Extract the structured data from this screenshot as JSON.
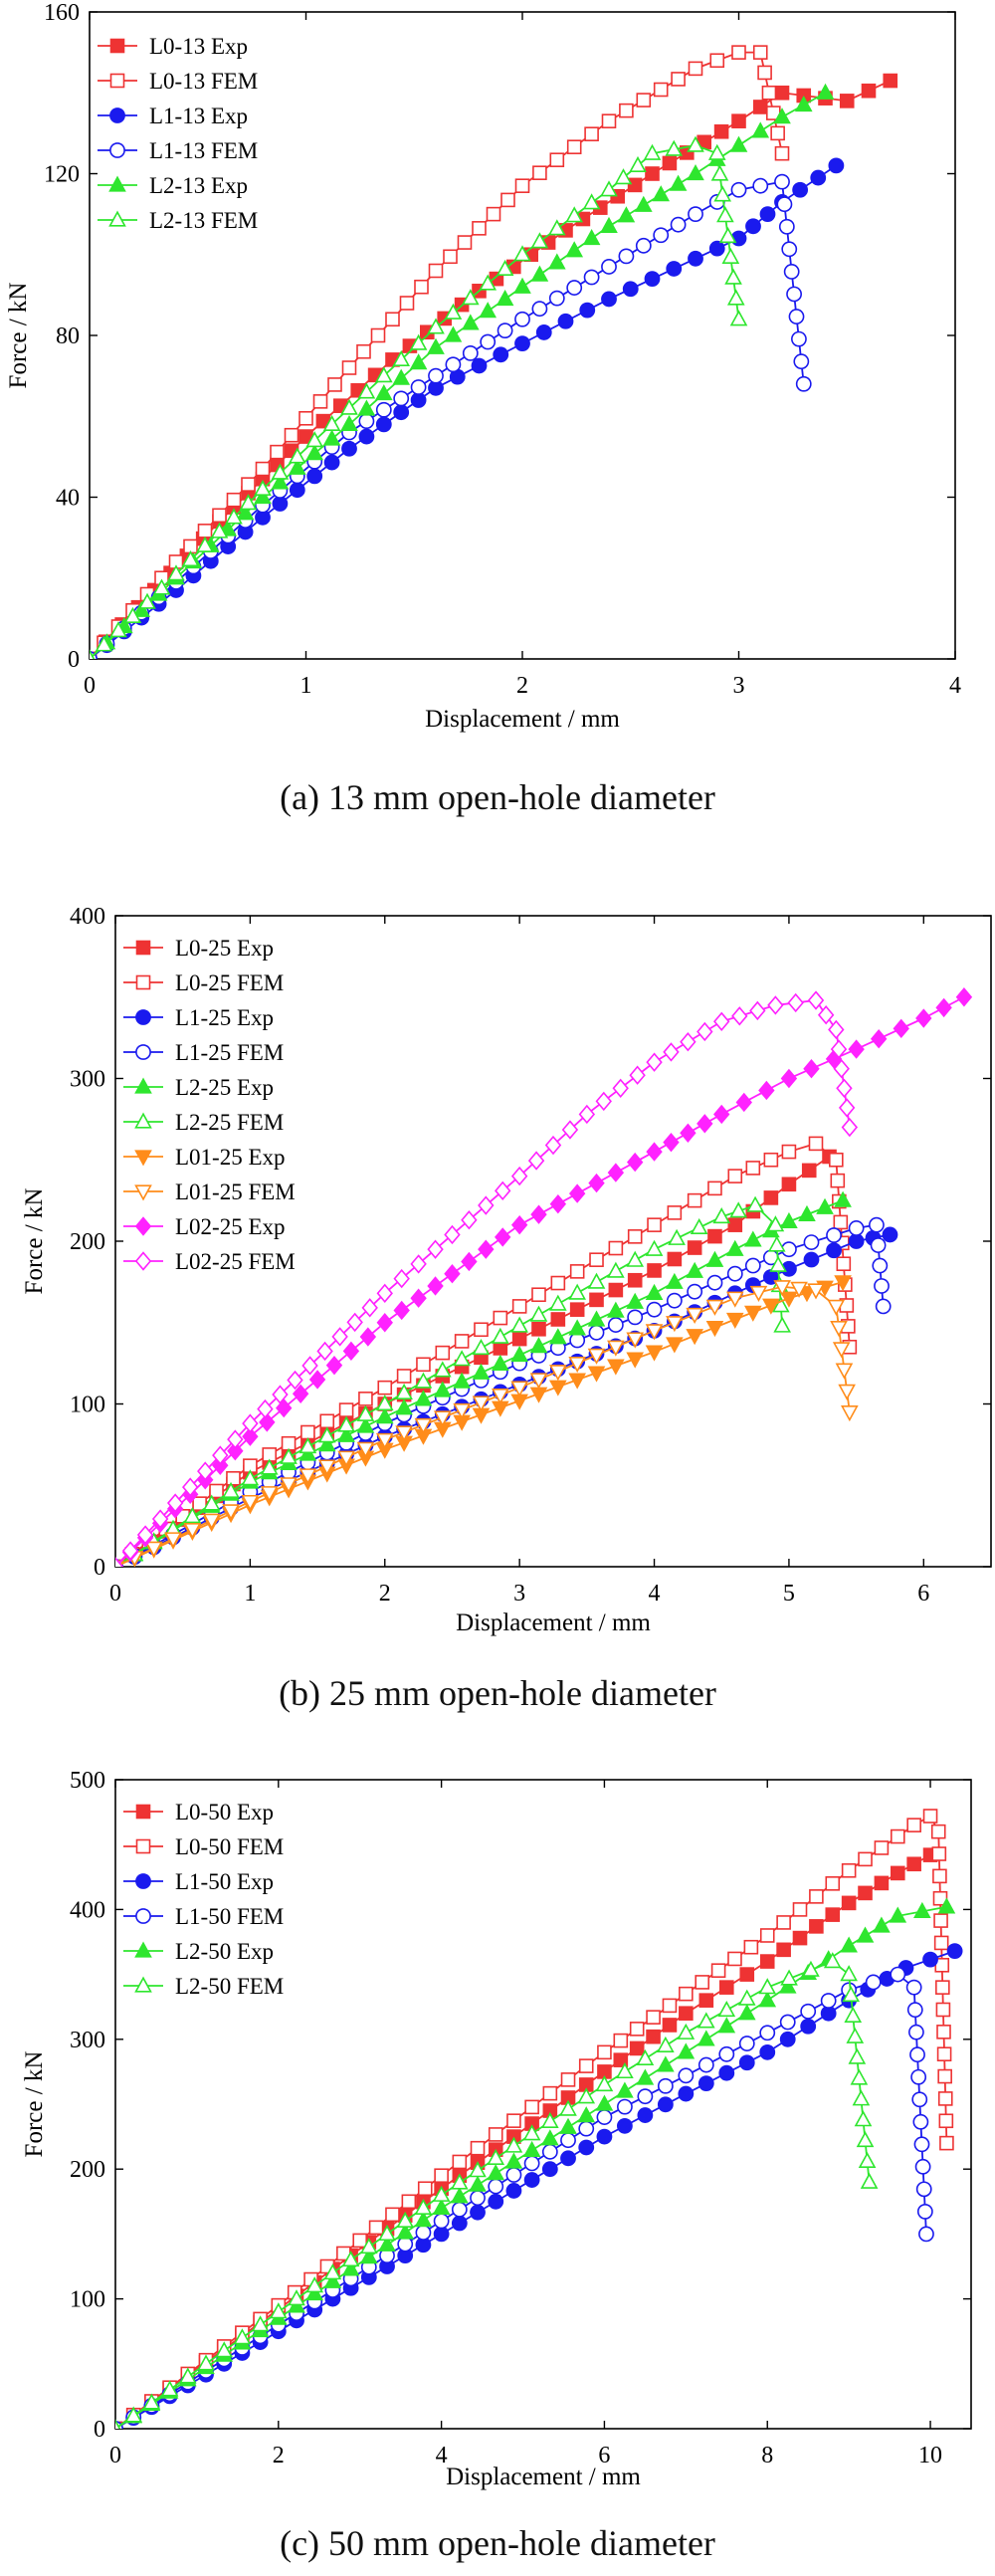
{
  "chart_data": [
    {
      "type": "line",
      "caption": "(a)  13 mm open-hole diameter",
      "xlabel": "Displacement / mm",
      "ylabel": "Force / kN",
      "xlim": [
        0,
        4
      ],
      "ylim": [
        0,
        160
      ],
      "xticks": [
        0,
        1,
        2,
        3,
        4
      ],
      "yticks": [
        0,
        40,
        80,
        120,
        160
      ],
      "grid": false,
      "legend_position": "top-left",
      "series": [
        {
          "name": "L0-13 Exp",
          "color": "#ee3333",
          "marker": "square",
          "filled": true,
          "points": [
            [
              0,
              0
            ],
            [
              0.3,
              17
            ],
            [
              0.6,
              34
            ],
            [
              1.0,
              55
            ],
            [
              1.4,
              74
            ],
            [
              1.8,
              91
            ],
            [
              2.2,
              106
            ],
            [
              2.6,
              120
            ],
            [
              3.0,
              133
            ],
            [
              3.2,
              140
            ],
            [
              3.5,
              138
            ],
            [
              3.7,
              143
            ]
          ]
        },
        {
          "name": "L0-13 FEM",
          "color": "#ee3333",
          "marker": "square",
          "filled": false,
          "points": [
            [
              0,
              0
            ],
            [
              0.4,
              24
            ],
            [
              0.8,
              47
            ],
            [
              1.2,
              72
            ],
            [
              1.6,
              96
            ],
            [
              2.0,
              117
            ],
            [
              2.4,
              133
            ],
            [
              2.8,
              146
            ],
            [
              3.0,
              150
            ],
            [
              3.1,
              150
            ],
            [
              3.2,
              125
            ]
          ]
        },
        {
          "name": "L1-13 Exp",
          "color": "#1a1aee",
          "marker": "circle",
          "filled": true,
          "points": [
            [
              0,
              0
            ],
            [
              0.4,
              17
            ],
            [
              0.8,
              35
            ],
            [
              1.2,
              52
            ],
            [
              1.6,
              67
            ],
            [
              2.0,
              78
            ],
            [
              2.4,
              89
            ],
            [
              2.8,
              99
            ],
            [
              3.0,
              104
            ],
            [
              3.2,
              113
            ],
            [
              3.45,
              122
            ]
          ]
        },
        {
          "name": "L1-13 FEM",
          "color": "#1a1aee",
          "marker": "circle",
          "filled": false,
          "points": [
            [
              0,
              0
            ],
            [
              0.4,
              19
            ],
            [
              0.8,
              38
            ],
            [
              1.2,
              56
            ],
            [
              1.6,
              70
            ],
            [
              2.0,
              84
            ],
            [
              2.4,
              97
            ],
            [
              2.8,
              110
            ],
            [
              3.0,
              116
            ],
            [
              3.2,
              118
            ],
            [
              3.3,
              68
            ]
          ]
        },
        {
          "name": "L2-13 Exp",
          "color": "#2ee62e",
          "marker": "triangle-up",
          "filled": true,
          "points": [
            [
              0,
              0
            ],
            [
              0.4,
              20
            ],
            [
              0.8,
              40
            ],
            [
              1.2,
              58
            ],
            [
              1.6,
              77
            ],
            [
              2.0,
              92
            ],
            [
              2.4,
              107
            ],
            [
              2.8,
              120
            ],
            [
              3.0,
              127
            ],
            [
              3.2,
              134
            ],
            [
              3.4,
              140
            ]
          ]
        },
        {
          "name": "L2-13 FEM",
          "color": "#2ee62e",
          "marker": "triangle-up",
          "filled": false,
          "points": [
            [
              0,
              0
            ],
            [
              0.4,
              21
            ],
            [
              0.8,
              42
            ],
            [
              1.2,
              62
            ],
            [
              1.6,
              82
            ],
            [
              2.0,
              100
            ],
            [
              2.4,
              116
            ],
            [
              2.6,
              125
            ],
            [
              2.8,
              127
            ],
            [
              2.9,
              125
            ],
            [
              3.0,
              84
            ]
          ]
        }
      ]
    },
    {
      "type": "line",
      "caption": "(b)  25 mm open-hole diameter",
      "xlabel": "Displacement / mm",
      "ylabel": "Force / kN",
      "xlim": [
        0,
        6.5
      ],
      "ylim": [
        0,
        400
      ],
      "xticks": [
        0,
        1,
        2,
        3,
        4,
        5,
        6
      ],
      "yticks": [
        0,
        100,
        200,
        300,
        400
      ],
      "grid": false,
      "legend_position": "top-left",
      "series": [
        {
          "name": "L0-25 Exp",
          "color": "#ee3333",
          "marker": "square",
          "filled": true,
          "points": [
            [
              0,
              0
            ],
            [
              1,
              58
            ],
            [
              2,
              100
            ],
            [
              3,
              140
            ],
            [
              4,
              182
            ],
            [
              4.6,
              210
            ],
            [
              5.0,
              235
            ],
            [
              5.3,
              252
            ]
          ]
        },
        {
          "name": "L0-25 FEM",
          "color": "#ee3333",
          "marker": "square",
          "filled": false,
          "points": [
            [
              0,
              0
            ],
            [
              1,
              62
            ],
            [
              2,
              110
            ],
            [
              3,
              160
            ],
            [
              4,
              210
            ],
            [
              4.6,
              240
            ],
            [
              5.0,
              255
            ],
            [
              5.2,
              260
            ],
            [
              5.35,
              250
            ],
            [
              5.45,
              135
            ]
          ]
        },
        {
          "name": "L1-25 Exp",
          "color": "#1a1aee",
          "marker": "circle",
          "filled": true,
          "points": [
            [
              0,
              0
            ],
            [
              1,
              42
            ],
            [
              2,
              80
            ],
            [
              3,
              112
            ],
            [
              4,
              145
            ],
            [
              4.6,
              168
            ],
            [
              5.0,
              183
            ],
            [
              5.5,
              200
            ],
            [
              5.75,
              204
            ]
          ]
        },
        {
          "name": "L1-25 FEM",
          "color": "#1a1aee",
          "marker": "circle",
          "filled": false,
          "points": [
            [
              0,
              0
            ],
            [
              1,
              46
            ],
            [
              2,
              88
            ],
            [
              3,
              125
            ],
            [
              4,
              158
            ],
            [
              4.6,
              180
            ],
            [
              5.0,
              195
            ],
            [
              5.5,
              208
            ],
            [
              5.65,
              210
            ],
            [
              5.7,
              160
            ]
          ]
        },
        {
          "name": "L2-25 Exp",
          "color": "#2ee62e",
          "marker": "triangle-up",
          "filled": true,
          "points": [
            [
              0,
              0
            ],
            [
              1,
              52
            ],
            [
              2,
              92
            ],
            [
              3,
              130
            ],
            [
              4,
              168
            ],
            [
              4.6,
              195
            ],
            [
              5.0,
              212
            ],
            [
              5.4,
              225
            ]
          ]
        },
        {
          "name": "L2-25 FEM",
          "color": "#2ee62e",
          "marker": "triangle-up",
          "filled": false,
          "points": [
            [
              0,
              0
            ],
            [
              1,
              54
            ],
            [
              2,
              100
            ],
            [
              3,
              148
            ],
            [
              4,
              195
            ],
            [
              4.5,
              215
            ],
            [
              4.75,
              222
            ],
            [
              4.9,
              210
            ],
            [
              4.95,
              148
            ]
          ]
        },
        {
          "name": "L01-25 Exp",
          "color": "#ff8c1a",
          "marker": "triangle-down",
          "filled": true,
          "points": [
            [
              0,
              0
            ],
            [
              1,
              38
            ],
            [
              2,
              72
            ],
            [
              3,
              102
            ],
            [
              4,
              132
            ],
            [
              4.6,
              152
            ],
            [
              5.0,
              165
            ],
            [
              5.4,
              175
            ]
          ]
        },
        {
          "name": "L01-25 FEM",
          "color": "#ff8c1a",
          "marker": "triangle-down",
          "filled": false,
          "points": [
            [
              0,
              0
            ],
            [
              1,
              40
            ],
            [
              2,
              78
            ],
            [
              3,
              110
            ],
            [
              4,
              145
            ],
            [
              4.6,
              165
            ],
            [
              4.95,
              172
            ],
            [
              5.2,
              170
            ],
            [
              5.35,
              160
            ],
            [
              5.45,
              95
            ]
          ]
        },
        {
          "name": "L02-25 Exp",
          "color": "#ff22ff",
          "marker": "diamond",
          "filled": true,
          "points": [
            [
              0,
              0
            ],
            [
              1,
              80
            ],
            [
              2,
              150
            ],
            [
              3,
              210
            ],
            [
              4,
              255
            ],
            [
              4.5,
              278
            ],
            [
              5,
              300
            ],
            [
              5.5,
              318
            ],
            [
              6,
              337
            ],
            [
              6.3,
              350
            ]
          ]
        },
        {
          "name": "L02-25 FEM",
          "color": "#ff22ff",
          "marker": "diamond",
          "filled": false,
          "points": [
            [
              0,
              0
            ],
            [
              1,
              88
            ],
            [
              2,
              168
            ],
            [
              3,
              240
            ],
            [
              3.5,
              278
            ],
            [
              4,
              310
            ],
            [
              4.5,
              335
            ],
            [
              4.9,
              345
            ],
            [
              5.2,
              348
            ],
            [
              5.35,
              330
            ],
            [
              5.45,
              270
            ]
          ]
        }
      ]
    },
    {
      "type": "line",
      "caption": "(c)  50 mm open-hole diameter",
      "xlabel": "Displacement / mm",
      "ylabel": "Force / kN",
      "xlim": [
        0,
        10.5
      ],
      "ylim": [
        0,
        500
      ],
      "xticks": [
        0,
        2,
        4,
        6,
        8,
        10
      ],
      "yticks": [
        0,
        100,
        200,
        300,
        400,
        500
      ],
      "grid": false,
      "legend_position": "top-left",
      "series": [
        {
          "name": "L0-50 Exp",
          "color": "#ee3333",
          "marker": "square",
          "filled": true,
          "points": [
            [
              0,
              0
            ],
            [
              2,
              92
            ],
            [
              4,
              185
            ],
            [
              6,
              275
            ],
            [
              7,
              320
            ],
            [
              8,
              360
            ],
            [
              9,
              405
            ],
            [
              9.6,
              428
            ],
            [
              10.0,
              442
            ]
          ]
        },
        {
          "name": "L0-50 FEM",
          "color": "#ee3333",
          "marker": "square",
          "filled": false,
          "points": [
            [
              0,
              0
            ],
            [
              2,
              95
            ],
            [
              4,
              195
            ],
            [
              6,
              290
            ],
            [
              7,
              335
            ],
            [
              8,
              380
            ],
            [
              9,
              430
            ],
            [
              9.8,
              465
            ],
            [
              10.0,
              472
            ],
            [
              10.1,
              460
            ],
            [
              10.2,
              220
            ]
          ]
        },
        {
          "name": "L1-50 Exp",
          "color": "#1a1aee",
          "marker": "circle",
          "filled": true,
          "points": [
            [
              0,
              0
            ],
            [
              2,
              75
            ],
            [
              4,
              150
            ],
            [
              6,
              225
            ],
            [
              7,
              258
            ],
            [
              8,
              290
            ],
            [
              9,
              330
            ],
            [
              9.7,
              355
            ],
            [
              10.3,
              368
            ]
          ]
        },
        {
          "name": "L1-50 FEM",
          "color": "#1a1aee",
          "marker": "circle",
          "filled": false,
          "points": [
            [
              0,
              0
            ],
            [
              2,
              80
            ],
            [
              4,
              160
            ],
            [
              6,
              240
            ],
            [
              7,
              272
            ],
            [
              8,
              305
            ],
            [
              9,
              338
            ],
            [
              9.6,
              350
            ],
            [
              9.8,
              340
            ],
            [
              9.95,
              150
            ]
          ]
        },
        {
          "name": "L2-50 Exp",
          "color": "#2ee62e",
          "marker": "triangle-up",
          "filled": true,
          "points": [
            [
              0,
              0
            ],
            [
              2,
              85
            ],
            [
              4,
              170
            ],
            [
              6,
              250
            ],
            [
              7,
              290
            ],
            [
              8,
              330
            ],
            [
              9,
              372
            ],
            [
              9.6,
              395
            ],
            [
              10.2,
              402
            ]
          ]
        },
        {
          "name": "L2-50 FEM",
          "color": "#2ee62e",
          "marker": "triangle-up",
          "filled": false,
          "points": [
            [
              0,
              0
            ],
            [
              2,
              90
            ],
            [
              4,
              180
            ],
            [
              6,
              265
            ],
            [
              7,
              305
            ],
            [
              8,
              340
            ],
            [
              8.8,
              360
            ],
            [
              9.0,
              350
            ],
            [
              9.25,
              190
            ]
          ]
        }
      ]
    }
  ]
}
